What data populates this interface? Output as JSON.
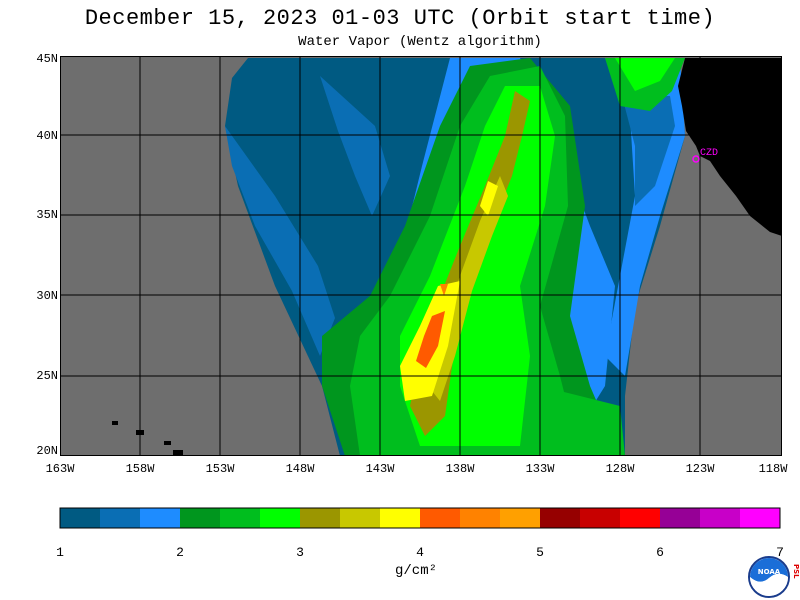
{
  "header": {
    "title": "December 15, 2023  01-03 UTC  (Orbit start time)",
    "subtitle": "Water Vapor (Wentz algorithm)"
  },
  "map": {
    "lat_labels": [
      "45N",
      "40N",
      "35N",
      "30N",
      "25N",
      "20N"
    ],
    "lon_labels": [
      "163W",
      "158W",
      "153W",
      "148W",
      "143W",
      "138W",
      "133W",
      "128W",
      "123W",
      "118W"
    ],
    "station_label": "CZD",
    "colors": {
      "nodata": "#6e6e6e",
      "land": "#000000",
      "grid": "#000000",
      "station": "#ff00ff"
    }
  },
  "colorbar": {
    "labels": [
      "1",
      "2",
      "3",
      "4",
      "5",
      "6",
      "7"
    ],
    "units": "g/cm²",
    "colors": [
      "#005a82",
      "#0a6eb4",
      "#1e8cff",
      "#00961e",
      "#00be1e",
      "#00ff00",
      "#9b9600",
      "#c8c800",
      "#ffff00",
      "#ff5a00",
      "#ff8200",
      "#ffa000",
      "#960000",
      "#c80000",
      "#ff0000",
      "#960096",
      "#c800c8",
      "#ff00ff"
    ]
  },
  "logo": {
    "text": "NOAA",
    "side_text": "PSL"
  }
}
